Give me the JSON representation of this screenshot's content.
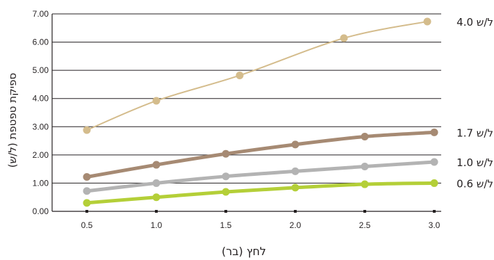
{
  "chart_data": {
    "type": "line",
    "xlabel": "לחץ (בר)",
    "ylabel": "ספיקת טפטפת (ל/ש)",
    "xlim": [
      0.25,
      3.05
    ],
    "ylim": [
      0,
      7
    ],
    "x_ticks": [
      "0.5",
      "1.0",
      "1.5",
      "2.0",
      "2.5",
      "3.0"
    ],
    "y_ticks": [
      "0.00",
      "1.00",
      "2.00",
      "3.00",
      "4.00",
      "5.00",
      "6.00",
      "7.00"
    ],
    "grid": "horizontal",
    "legend": "right, labels at line ends",
    "series": [
      {
        "name": "4.0 ל/ש",
        "color": "#d4bc8c",
        "x": [
          0.5,
          1.0,
          1.6,
          2.35,
          2.95
        ],
        "y": [
          2.88,
          3.92,
          4.82,
          6.14,
          6.73
        ]
      },
      {
        "name": "1.7 ל/ש",
        "color": "#a68a73",
        "x": [
          0.5,
          1.0,
          1.5,
          2.0,
          2.5,
          3.0
        ],
        "y": [
          1.22,
          1.65,
          2.04,
          2.37,
          2.65,
          2.8
        ]
      },
      {
        "name": "1.0 ל/ש",
        "color": "#b3b3b3",
        "x": [
          0.5,
          1.0,
          1.5,
          2.0,
          2.5,
          3.0
        ],
        "y": [
          0.72,
          1.0,
          1.24,
          1.42,
          1.59,
          1.75
        ]
      },
      {
        "name": "0.6 ל/ש",
        "color": "#b4cf38",
        "x": [
          0.5,
          1.0,
          1.5,
          2.0,
          2.5,
          3.0
        ],
        "y": [
          0.3,
          0.5,
          0.69,
          0.84,
          0.96,
          1.0
        ]
      }
    ]
  }
}
